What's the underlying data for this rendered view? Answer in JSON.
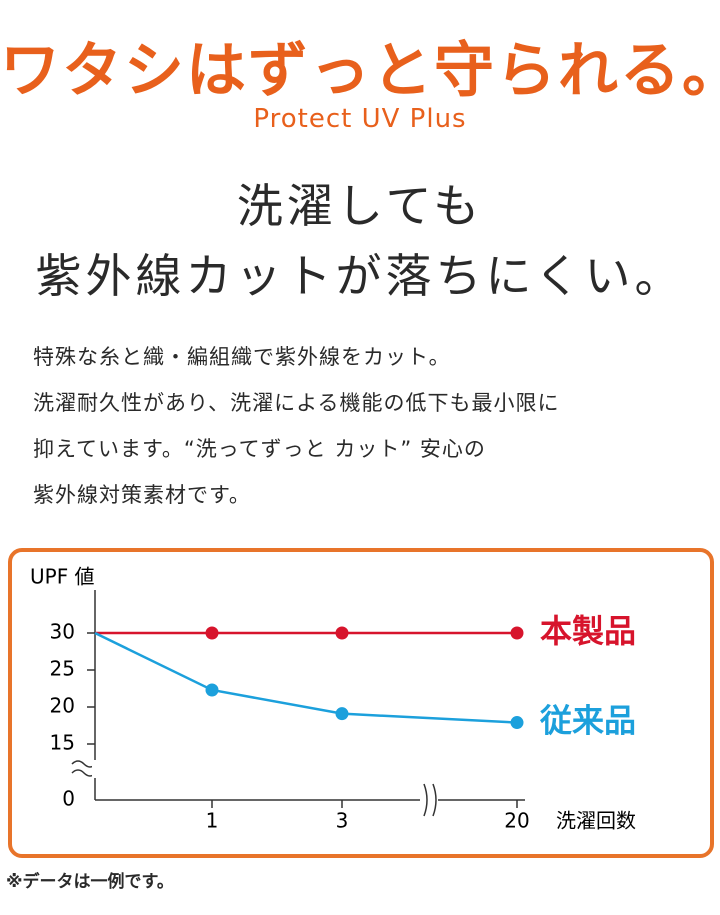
{
  "header": {
    "title": "ワタシはずっと守られる。",
    "subtitle": "Protect UV Plus"
  },
  "heading": [
    "洗濯しても",
    "紫外線カットが落ちにくい。"
  ],
  "body": [
    "特殊な糸と織・編組織で紫外線をカット。",
    "洗濯耐久性があり、洗濯による機能の低下も最小限に",
    "抑えています。“洗ってずっと カット” 安心の",
    "紫外線対策素材です。"
  ],
  "footnote": "※データは一例です。",
  "chart_data": {
    "type": "line",
    "y_label": "UPF 値",
    "x_label": "洗濯回数",
    "categories": [
      null,
      "1",
      "3",
      "20"
    ],
    "series": [
      {
        "name": "本製品",
        "color": "#d7142c",
        "values": [
          30,
          30,
          30,
          30
        ]
      },
      {
        "name": "従来品",
        "color": "#1ca0dc",
        "values": [
          30,
          22.3,
          19.1,
          17.9
        ]
      }
    ],
    "ylim": [
      0,
      30
    ],
    "yticks": [
      0,
      15,
      20,
      25,
      30
    ],
    "y_axis_break": true,
    "x_axis_break": true
  }
}
